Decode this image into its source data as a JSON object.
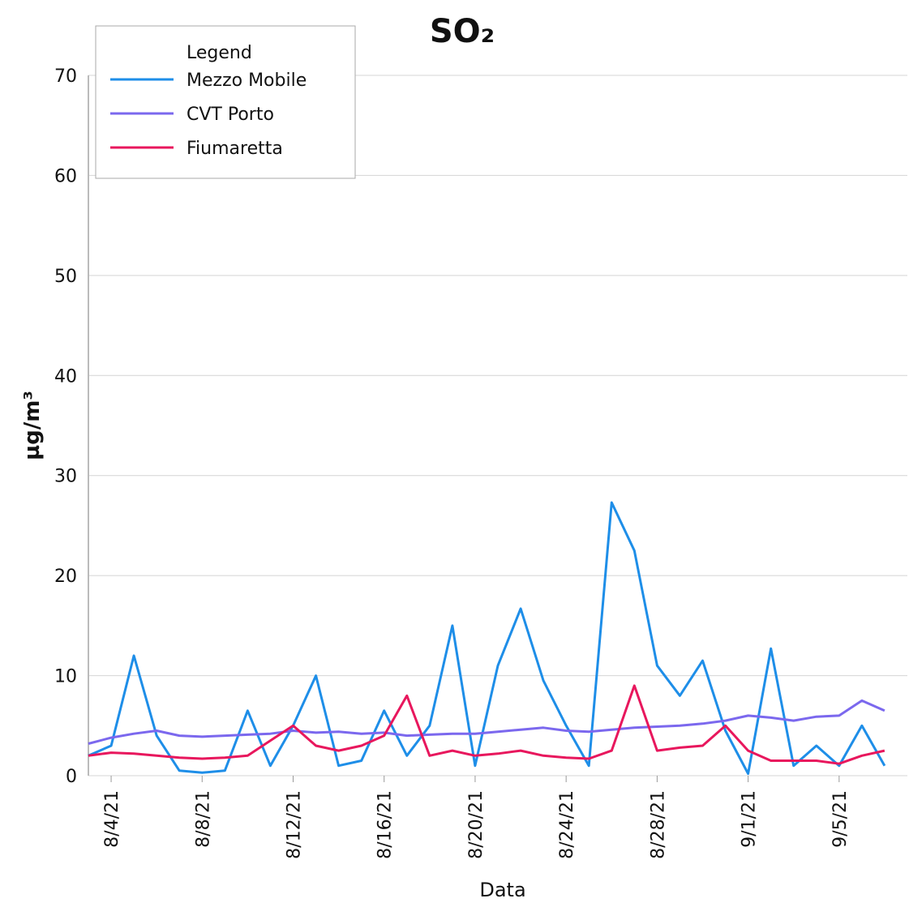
{
  "chart_data": {
    "type": "line",
    "title": "SO₂",
    "ylabel": "µg/m³",
    "xlabel": "Data",
    "legend_title": "Legend",
    "legend": "top-left",
    "grid": true,
    "x": [
      "8/3/21",
      "8/4/21",
      "8/5/21",
      "8/6/21",
      "8/7/21",
      "8/8/21",
      "8/9/21",
      "8/10/21",
      "8/11/21",
      "8/12/21",
      "8/13/21",
      "8/14/21",
      "8/15/21",
      "8/16/21",
      "8/17/21",
      "8/18/21",
      "8/19/21",
      "8/20/21",
      "8/21/21",
      "8/22/21",
      "8/23/21",
      "8/24/21",
      "8/25/21",
      "8/26/21",
      "8/27/21",
      "8/28/21",
      "8/29/21",
      "8/30/21",
      "8/31/21",
      "9/1/21",
      "9/2/21",
      "9/3/21",
      "9/4/21",
      "9/5/21",
      "9/6/21",
      "9/7/21"
    ],
    "series": [
      {
        "name": "Mezzo Mobile",
        "color": "#1e8ee8",
        "values": [
          2,
          3,
          12,
          4,
          0.5,
          0.3,
          0.5,
          6.5,
          1,
          5,
          10,
          1,
          1.5,
          6.5,
          2,
          5,
          15,
          1,
          11,
          16.7,
          9.5,
          5,
          1,
          27.3,
          22.5,
          11,
          8,
          11.5,
          4.5,
          0.2,
          12.7,
          1,
          3,
          1,
          5,
          1
        ]
      },
      {
        "name": "CVT Porto",
        "color": "#7b68ee",
        "values": [
          3.2,
          3.8,
          4.2,
          4.5,
          4,
          3.9,
          4,
          4.1,
          4.2,
          4.5,
          4.3,
          4.4,
          4.2,
          4.3,
          4,
          4.1,
          4.2,
          4.2,
          4.4,
          4.6,
          4.8,
          4.5,
          4.4,
          4.6,
          4.8,
          4.9,
          5,
          5.2,
          5.5,
          6,
          5.8,
          5.5,
          5.9,
          6,
          7.5,
          6.5
        ]
      },
      {
        "name": "Fiumaretta",
        "color": "#e8175d",
        "values": [
          2,
          2.3,
          2.2,
          2,
          1.8,
          1.7,
          1.8,
          2,
          3.5,
          5,
          3,
          2.5,
          3,
          4,
          8,
          2,
          2.5,
          2,
          2.2,
          2.5,
          2,
          1.8,
          1.7,
          2.5,
          9,
          2.5,
          2.8,
          3,
          5,
          2.5,
          1.5,
          1.5,
          1.5,
          1.2,
          2,
          2.5
        ]
      }
    ],
    "xlim": [
      "8/3/21",
      "9/8/21"
    ],
    "xticks": [
      "8/4/21",
      "8/8/21",
      "8/12/21",
      "8/16/21",
      "8/20/21",
      "8/24/21",
      "8/28/21",
      "9/1/21",
      "9/5/21"
    ],
    "ylim": [
      0,
      70
    ],
    "yticks": [
      0,
      10,
      20,
      30,
      40,
      50,
      60,
      70
    ]
  }
}
